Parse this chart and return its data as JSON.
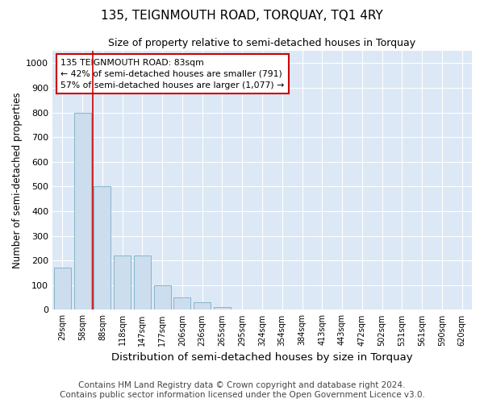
{
  "title": "135, TEIGNMOUTH ROAD, TORQUAY, TQ1 4RY",
  "subtitle": "Size of property relative to semi-detached houses in Torquay",
  "xlabel": "Distribution of semi-detached houses by size in Torquay",
  "ylabel": "Number of semi-detached properties",
  "categories": [
    "29sqm",
    "58sqm",
    "88sqm",
    "118sqm",
    "147sqm",
    "177sqm",
    "206sqm",
    "236sqm",
    "265sqm",
    "295sqm",
    "324sqm",
    "354sqm",
    "384sqm",
    "413sqm",
    "443sqm",
    "472sqm",
    "502sqm",
    "531sqm",
    "561sqm",
    "590sqm",
    "620sqm"
  ],
  "values": [
    170,
    800,
    500,
    220,
    220,
    100,
    50,
    30,
    10,
    0,
    0,
    0,
    0,
    0,
    0,
    0,
    0,
    0,
    0,
    0,
    0
  ],
  "bar_color": "#ccdded",
  "bar_edge_color": "#7aaec8",
  "marker_color": "#cc0000",
  "annotation_text": "135 TEIGNMOUTH ROAD: 83sqm\n← 42% of semi-detached houses are smaller (791)\n57% of semi-detached houses are larger (1,077) →",
  "annotation_box_color": "#ffffff",
  "annotation_box_edge": "#cc0000",
  "ylim": [
    0,
    1050
  ],
  "yticks": [
    0,
    100,
    200,
    300,
    400,
    500,
    600,
    700,
    800,
    900,
    1000
  ],
  "plot_background": "#dce8f5",
  "footer_line1": "Contains HM Land Registry data © Crown copyright and database right 2024.",
  "footer_line2": "Contains public sector information licensed under the Open Government Licence v3.0.",
  "title_fontsize": 11,
  "subtitle_fontsize": 9,
  "xlabel_fontsize": 9.5,
  "ylabel_fontsize": 8.5,
  "footer_fontsize": 7.5
}
